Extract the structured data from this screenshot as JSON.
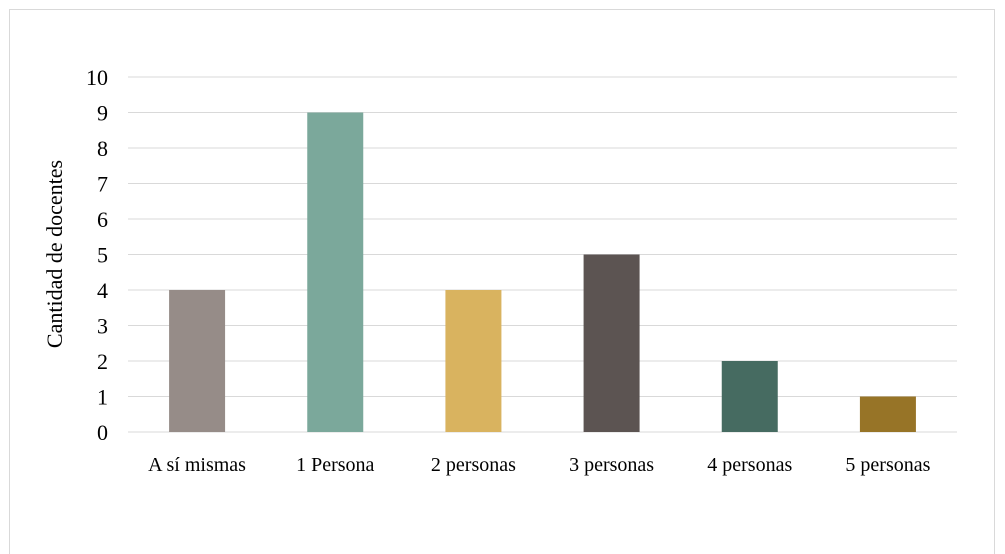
{
  "chart_data": {
    "type": "bar",
    "title": "",
    "xlabel": "",
    "ylabel": "Cantidad de docentes",
    "categories": [
      "A sí mismas",
      "1 Persona",
      "2 personas",
      "3 personas",
      "4 personas",
      "5 personas"
    ],
    "values": [
      4,
      9,
      4,
      5,
      2,
      1
    ],
    "colors": [
      "#968c88",
      "#7ba89b",
      "#d9b35f",
      "#5c5452",
      "#466b61",
      "#977427"
    ],
    "ylim": [
      0,
      10
    ],
    "yticks": [
      0,
      1,
      2,
      3,
      4,
      5,
      6,
      7,
      8,
      9,
      10
    ],
    "grid": true,
    "gridColor": "#d9d9d9",
    "legend": "none"
  }
}
